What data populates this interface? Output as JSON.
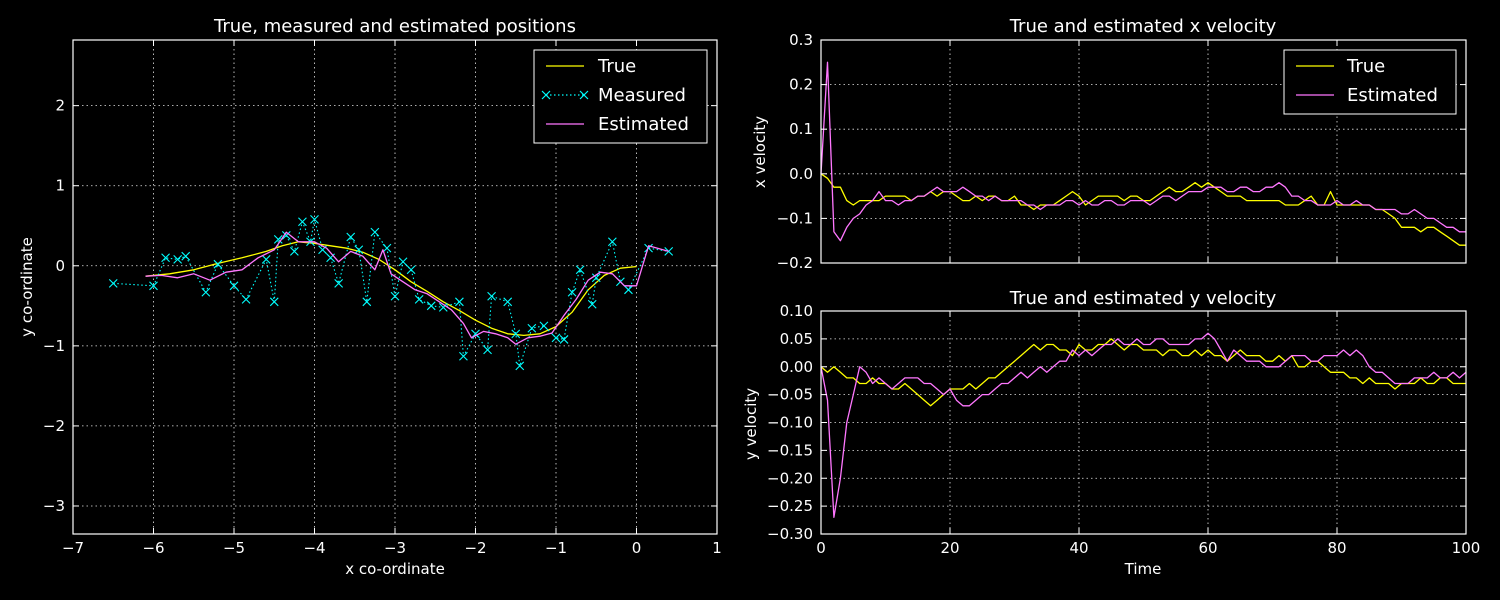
{
  "chart_data": [
    {
      "type": "line",
      "title": "True, measured and estimated positions",
      "xlabel": "x co-ordinate",
      "ylabel": "y co-ordinate",
      "xlim": [
        -7,
        1
      ],
      "ylim": [
        -3.35,
        2.82
      ],
      "xticks": [
        -7,
        -6,
        -5,
        -4,
        -3,
        -2,
        -1,
        0,
        1
      ],
      "yticks": [
        -3,
        -2,
        -1,
        0,
        1,
        2
      ],
      "xtick_labels": [
        "−7",
        "−6",
        "−5",
        "−4",
        "−3",
        "−2",
        "−1",
        "0",
        "1"
      ],
      "ytick_labels": [
        "−3",
        "−2",
        "−1",
        "0",
        "1",
        "2"
      ],
      "grid": true,
      "legend": "top-right",
      "series": [
        {
          "name": "True",
          "color": "#ffff00",
          "style": "solid",
          "points": [
            [
              -6.1,
              -0.13
            ],
            [
              -5.8,
              -0.1
            ],
            [
              -5.5,
              -0.05
            ],
            [
              -5.2,
              0.03
            ],
            [
              -4.9,
              0.1
            ],
            [
              -4.6,
              0.18
            ],
            [
              -4.4,
              0.25
            ],
            [
              -4.2,
              0.3
            ],
            [
              -4.0,
              0.28
            ],
            [
              -3.8,
              0.25
            ],
            [
              -3.6,
              0.22
            ],
            [
              -3.4,
              0.17
            ],
            [
              -3.2,
              0.08
            ],
            [
              -3.0,
              -0.05
            ],
            [
              -2.8,
              -0.2
            ],
            [
              -2.6,
              -0.32
            ],
            [
              -2.4,
              -0.45
            ],
            [
              -2.2,
              -0.56
            ],
            [
              -2.0,
              -0.68
            ],
            [
              -1.8,
              -0.78
            ],
            [
              -1.6,
              -0.85
            ],
            [
              -1.4,
              -0.87
            ],
            [
              -1.2,
              -0.85
            ],
            [
              -1.0,
              -0.76
            ],
            [
              -0.8,
              -0.58
            ],
            [
              -0.6,
              -0.3
            ],
            [
              -0.4,
              -0.12
            ],
            [
              -0.2,
              -0.03
            ],
            [
              0.0,
              -0.01
            ]
          ]
        },
        {
          "name": "Measured",
          "color": "#00ffff",
          "style": "dotted-x",
          "points": [
            [
              -6.5,
              -0.22
            ],
            [
              -6.0,
              -0.25
            ],
            [
              -5.85,
              0.1
            ],
            [
              -5.7,
              0.08
            ],
            [
              -5.6,
              0.12
            ],
            [
              -5.35,
              -0.33
            ],
            [
              -5.2,
              0.02
            ],
            [
              -5.0,
              -0.25
            ],
            [
              -4.85,
              -0.42
            ],
            [
              -4.6,
              0.08
            ],
            [
              -4.5,
              -0.45
            ],
            [
              -4.45,
              0.33
            ],
            [
              -4.35,
              0.38
            ],
            [
              -4.25,
              0.18
            ],
            [
              -4.15,
              0.55
            ],
            [
              -4.05,
              0.3
            ],
            [
              -4.0,
              0.58
            ],
            [
              -3.9,
              0.2
            ],
            [
              -3.8,
              0.1
            ],
            [
              -3.7,
              -0.22
            ],
            [
              -3.55,
              0.36
            ],
            [
              -3.45,
              0.2
            ],
            [
              -3.35,
              -0.45
            ],
            [
              -3.25,
              0.42
            ],
            [
              -3.1,
              0.22
            ],
            [
              -3.0,
              -0.38
            ],
            [
              -2.9,
              0.05
            ],
            [
              -2.8,
              -0.05
            ],
            [
              -2.7,
              -0.42
            ],
            [
              -2.55,
              -0.5
            ],
            [
              -2.4,
              -0.52
            ],
            [
              -2.2,
              -0.45
            ],
            [
              -2.15,
              -1.13
            ],
            [
              -2.0,
              -0.85
            ],
            [
              -1.85,
              -1.05
            ],
            [
              -1.8,
              -0.38
            ],
            [
              -1.6,
              -0.45
            ],
            [
              -1.5,
              -0.85
            ],
            [
              -1.45,
              -1.25
            ],
            [
              -1.3,
              -0.78
            ],
            [
              -1.15,
              -0.75
            ],
            [
              -1.0,
              -0.9
            ],
            [
              -0.9,
              -0.92
            ],
            [
              -0.8,
              -0.33
            ],
            [
              -0.7,
              -0.05
            ],
            [
              -0.55,
              -0.48
            ],
            [
              -0.5,
              -0.15
            ],
            [
              -0.3,
              0.3
            ],
            [
              -0.2,
              -0.2
            ],
            [
              -0.1,
              -0.3
            ],
            [
              0.15,
              0.22
            ],
            [
              0.4,
              0.18
            ]
          ]
        },
        {
          "name": "Estimated",
          "color": "#ff77ff",
          "style": "solid",
          "points": [
            [
              -6.1,
              -0.13
            ],
            [
              -5.9,
              -0.12
            ],
            [
              -5.7,
              -0.15
            ],
            [
              -5.5,
              -0.1
            ],
            [
              -5.3,
              -0.18
            ],
            [
              -5.1,
              -0.08
            ],
            [
              -4.9,
              -0.05
            ],
            [
              -4.7,
              0.1
            ],
            [
              -4.5,
              0.2
            ],
            [
              -4.35,
              0.42
            ],
            [
              -4.2,
              0.3
            ],
            [
              -4.0,
              0.3
            ],
            [
              -3.85,
              0.22
            ],
            [
              -3.7,
              0.05
            ],
            [
              -3.55,
              0.18
            ],
            [
              -3.4,
              0.12
            ],
            [
              -3.25,
              -0.05
            ],
            [
              -3.15,
              0.2
            ],
            [
              -3.05,
              -0.1
            ],
            [
              -2.9,
              -0.2
            ],
            [
              -2.75,
              -0.3
            ],
            [
              -2.6,
              -0.35
            ],
            [
              -2.45,
              -0.45
            ],
            [
              -2.3,
              -0.55
            ],
            [
              -2.15,
              -0.72
            ],
            [
              -2.05,
              -0.9
            ],
            [
              -1.9,
              -0.82
            ],
            [
              -1.75,
              -0.85
            ],
            [
              -1.6,
              -0.9
            ],
            [
              -1.5,
              -0.98
            ],
            [
              -1.35,
              -0.9
            ],
            [
              -1.2,
              -0.88
            ],
            [
              -1.05,
              -0.84
            ],
            [
              -0.9,
              -0.62
            ],
            [
              -0.75,
              -0.42
            ],
            [
              -0.6,
              -0.18
            ],
            [
              -0.45,
              -0.08
            ],
            [
              -0.3,
              -0.1
            ],
            [
              -0.15,
              -0.25
            ],
            [
              0.0,
              -0.25
            ],
            [
              0.15,
              0.25
            ],
            [
              0.4,
              0.18
            ]
          ]
        }
      ]
    },
    {
      "type": "line",
      "title": "True and estimated x velocity",
      "xlabel": "",
      "ylabel": "x velocity",
      "xlim": [
        0,
        100
      ],
      "ylim": [
        -0.2,
        0.3
      ],
      "yticks": [
        -0.2,
        -0.1,
        0.0,
        0.1,
        0.2,
        0.3
      ],
      "ytick_labels": [
        "−0.2",
        "−0.1",
        "0.0",
        "0.1",
        "0.2",
        "0.3"
      ],
      "grid": true,
      "legend": "top-right",
      "series": [
        {
          "name": "True",
          "color": "#ffff00",
          "values": [
            0.0,
            -0.01,
            -0.03,
            -0.03,
            -0.06,
            -0.07,
            -0.06,
            -0.06,
            -0.06,
            -0.06,
            -0.05,
            -0.05,
            -0.05,
            -0.05,
            -0.06,
            -0.05,
            -0.05,
            -0.04,
            -0.05,
            -0.04,
            -0.04,
            -0.05,
            -0.06,
            -0.06,
            -0.05,
            -0.06,
            -0.05,
            -0.05,
            -0.06,
            -0.06,
            -0.05,
            -0.07,
            -0.07,
            -0.08,
            -0.07,
            -0.07,
            -0.07,
            -0.06,
            -0.05,
            -0.04,
            -0.05,
            -0.07,
            -0.06,
            -0.05,
            -0.05,
            -0.05,
            -0.05,
            -0.06,
            -0.05,
            -0.05,
            -0.06,
            -0.06,
            -0.05,
            -0.04,
            -0.03,
            -0.04,
            -0.04,
            -0.03,
            -0.02,
            -0.03,
            -0.02,
            -0.03,
            -0.04,
            -0.05,
            -0.05,
            -0.05,
            -0.06,
            -0.06,
            -0.06,
            -0.06,
            -0.06,
            -0.06,
            -0.07,
            -0.07,
            -0.07,
            -0.06,
            -0.05,
            -0.07,
            -0.07,
            -0.04,
            -0.07,
            -0.07,
            -0.07,
            -0.07,
            -0.07,
            -0.07,
            -0.08,
            -0.08,
            -0.09,
            -0.1,
            -0.12,
            -0.12,
            -0.12,
            -0.13,
            -0.12,
            -0.12,
            -0.13,
            -0.14,
            -0.15,
            -0.16,
            -0.16
          ]
        },
        {
          "name": "Estimated",
          "color": "#ff77ff",
          "values": [
            0.0,
            0.25,
            -0.13,
            -0.15,
            -0.12,
            -0.1,
            -0.09,
            -0.07,
            -0.06,
            -0.04,
            -0.06,
            -0.06,
            -0.07,
            -0.06,
            -0.06,
            -0.05,
            -0.05,
            -0.04,
            -0.03,
            -0.04,
            -0.04,
            -0.04,
            -0.03,
            -0.04,
            -0.05,
            -0.05,
            -0.06,
            -0.05,
            -0.06,
            -0.06,
            -0.06,
            -0.06,
            -0.07,
            -0.07,
            -0.08,
            -0.07,
            -0.07,
            -0.07,
            -0.06,
            -0.06,
            -0.07,
            -0.06,
            -0.07,
            -0.07,
            -0.06,
            -0.06,
            -0.07,
            -0.07,
            -0.06,
            -0.06,
            -0.06,
            -0.07,
            -0.06,
            -0.05,
            -0.05,
            -0.06,
            -0.05,
            -0.04,
            -0.04,
            -0.04,
            -0.03,
            -0.03,
            -0.03,
            -0.04,
            -0.04,
            -0.03,
            -0.03,
            -0.04,
            -0.04,
            -0.03,
            -0.03,
            -0.02,
            -0.03,
            -0.05,
            -0.05,
            -0.06,
            -0.06,
            -0.07,
            -0.07,
            -0.07,
            -0.06,
            -0.07,
            -0.07,
            -0.06,
            -0.07,
            -0.07,
            -0.08,
            -0.08,
            -0.08,
            -0.08,
            -0.09,
            -0.09,
            -0.08,
            -0.09,
            -0.1,
            -0.1,
            -0.11,
            -0.12,
            -0.12,
            -0.13,
            -0.13
          ]
        }
      ]
    },
    {
      "type": "line",
      "title": "True and estimated y velocity",
      "xlabel": "Time",
      "ylabel": "y velocity",
      "xlim": [
        0,
        100
      ],
      "ylim": [
        -0.3,
        0.1
      ],
      "xticks": [
        0,
        20,
        40,
        60,
        80,
        100
      ],
      "yticks": [
        -0.3,
        -0.25,
        -0.2,
        -0.15,
        -0.1,
        -0.05,
        0.0,
        0.05,
        0.1
      ],
      "xtick_labels": [
        "0",
        "20",
        "40",
        "60",
        "80",
        "100"
      ],
      "ytick_labels": [
        "−0.30",
        "−0.25",
        "−0.20",
        "−0.15",
        "−0.10",
        "−0.05",
        "0.00",
        "0.05",
        "0.10"
      ],
      "grid": true,
      "series": [
        {
          "name": "True",
          "color": "#ffff00",
          "values": [
            0.0,
            -0.01,
            0.0,
            -0.01,
            -0.02,
            -0.02,
            -0.03,
            -0.03,
            -0.02,
            -0.03,
            -0.03,
            -0.04,
            -0.04,
            -0.03,
            -0.04,
            -0.05,
            -0.06,
            -0.07,
            -0.06,
            -0.05,
            -0.04,
            -0.04,
            -0.04,
            -0.03,
            -0.04,
            -0.03,
            -0.02,
            -0.02,
            -0.01,
            0.0,
            0.01,
            0.02,
            0.03,
            0.04,
            0.03,
            0.04,
            0.04,
            0.03,
            0.03,
            0.02,
            0.04,
            0.03,
            0.03,
            0.04,
            0.04,
            0.05,
            0.04,
            0.03,
            0.04,
            0.04,
            0.03,
            0.03,
            0.03,
            0.02,
            0.03,
            0.03,
            0.02,
            0.02,
            0.03,
            0.02,
            0.03,
            0.02,
            0.02,
            0.01,
            0.02,
            0.03,
            0.02,
            0.02,
            0.02,
            0.01,
            0.01,
            0.02,
            0.01,
            0.02,
            0.0,
            0.0,
            0.01,
            0.01,
            0.0,
            -0.01,
            -0.01,
            -0.01,
            -0.02,
            -0.02,
            -0.03,
            -0.02,
            -0.03,
            -0.03,
            -0.03,
            -0.04,
            -0.03,
            -0.03,
            -0.03,
            -0.02,
            -0.03,
            -0.03,
            -0.02,
            -0.02,
            -0.03,
            -0.03,
            -0.03
          ]
        },
        {
          "name": "Estimated",
          "color": "#ff77ff",
          "values": [
            0.0,
            -0.06,
            -0.27,
            -0.2,
            -0.1,
            -0.05,
            0.0,
            -0.01,
            -0.03,
            -0.02,
            -0.03,
            -0.04,
            -0.03,
            -0.02,
            -0.02,
            -0.02,
            -0.03,
            -0.03,
            -0.04,
            -0.05,
            -0.04,
            -0.06,
            -0.07,
            -0.07,
            -0.06,
            -0.05,
            -0.05,
            -0.04,
            -0.03,
            -0.03,
            -0.02,
            -0.01,
            -0.02,
            -0.01,
            0.0,
            -0.01,
            0.0,
            0.01,
            0.01,
            0.03,
            0.02,
            0.03,
            0.02,
            0.03,
            0.04,
            0.04,
            0.05,
            0.04,
            0.04,
            0.05,
            0.04,
            0.04,
            0.05,
            0.05,
            0.04,
            0.04,
            0.04,
            0.04,
            0.05,
            0.05,
            0.06,
            0.05,
            0.03,
            0.01,
            0.03,
            0.02,
            0.01,
            0.01,
            0.01,
            0.0,
            0.0,
            0.0,
            0.01,
            0.02,
            0.02,
            0.02,
            0.01,
            0.01,
            0.02,
            0.02,
            0.02,
            0.03,
            0.02,
            0.03,
            0.02,
            0.0,
            -0.01,
            -0.01,
            -0.02,
            -0.03,
            -0.03,
            -0.03,
            -0.02,
            -0.02,
            -0.02,
            -0.01,
            -0.02,
            -0.02,
            -0.01,
            -0.02,
            -0.01
          ]
        }
      ]
    }
  ]
}
